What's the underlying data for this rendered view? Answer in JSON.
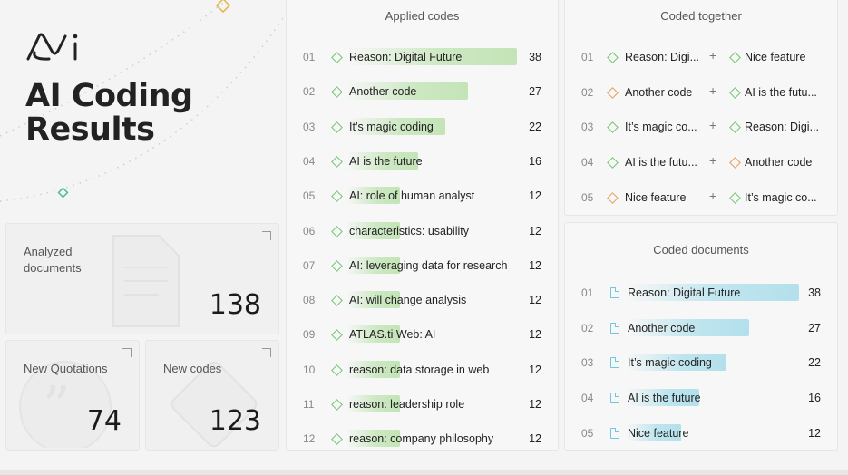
{
  "hero": {
    "title_line1": "AI Coding",
    "title_line2": "Results",
    "logo": "atlas-ai-logo"
  },
  "stats": {
    "analyzed": {
      "label_line1": "Analyzed",
      "label_line2": "documents",
      "value": "138",
      "icon": "document-icon"
    },
    "quotations": {
      "label": "New Quotations",
      "value": "74",
      "icon": "quote-icon"
    },
    "codes": {
      "label": "New codes",
      "value": "123",
      "icon": "code-diamond-icon"
    }
  },
  "applied_codes": {
    "title": "Applied codes",
    "accent": "#c4e4b7",
    "max": 38,
    "rows": [
      {
        "idx": "01",
        "label": "Reason: Digital Future",
        "count": 38
      },
      {
        "idx": "02",
        "label": "Another code",
        "count": 27
      },
      {
        "idx": "03",
        "label": "It’s magic coding",
        "count": 22
      },
      {
        "idx": "04",
        "label": "AI is the future",
        "count": 16
      },
      {
        "idx": "05",
        "label": "AI: role of human analyst",
        "count": 12
      },
      {
        "idx": "06",
        "label": "characteristics: usability",
        "count": 12
      },
      {
        "idx": "07",
        "label": "AI: leveraging data for research",
        "count": 12
      },
      {
        "idx": "08",
        "label": "AI: will change analysis",
        "count": 12
      },
      {
        "idx": "09",
        "label": "ATLAS.ti Web: AI",
        "count": 12
      },
      {
        "idx": "10",
        "label": "reason: data storage in web",
        "count": 12
      },
      {
        "idx": "11",
        "label": "reason: leadership role",
        "count": 12
      },
      {
        "idx": "12",
        "label": "reason: company philosophy",
        "count": 12
      }
    ]
  },
  "coded_together": {
    "title": "Coded together",
    "rows": [
      {
        "idx": "01",
        "a": "Reason: Digi...",
        "a_color": "green",
        "b": "Nice feature",
        "b_color": "green"
      },
      {
        "idx": "02",
        "a": "Another code",
        "a_color": "orange",
        "b": "AI is the futu...",
        "b_color": "green"
      },
      {
        "idx": "03",
        "a": "It’s magic co...",
        "a_color": "green",
        "b": "Reason: Digi...",
        "b_color": "green"
      },
      {
        "idx": "04",
        "a": "AI is the futu...",
        "a_color": "green",
        "b": "Another code",
        "b_color": "orange"
      },
      {
        "idx": "05",
        "a": "Nice feature",
        "a_color": "orange",
        "b": "It’s magic co...",
        "b_color": "green"
      }
    ],
    "plus": "+"
  },
  "coded_documents": {
    "title": "Coded documents",
    "accent": "#b3e0ec",
    "max": 38,
    "rows": [
      {
        "idx": "01",
        "label": "Reason: Digital Future",
        "count": 38
      },
      {
        "idx": "02",
        "label": "Another code",
        "count": 27
      },
      {
        "idx": "03",
        "label": "It’s magic coding",
        "count": 22
      },
      {
        "idx": "04",
        "label": "AI is the future",
        "count": 16
      },
      {
        "idx": "05",
        "label": "Nice feature",
        "count": 12
      }
    ]
  }
}
